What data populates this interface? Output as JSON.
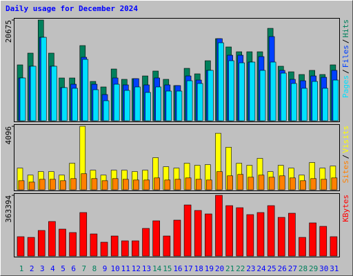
{
  "chart_data": [
    {
      "type": "bar",
      "title": "Daily usage for December 2024",
      "categories": [
        "1",
        "2",
        "3",
        "4",
        "5",
        "6",
        "7",
        "8",
        "9",
        "10",
        "11",
        "12",
        "13",
        "14",
        "15",
        "16",
        "17",
        "18",
        "19",
        "20",
        "21",
        "22",
        "23",
        "24",
        "25",
        "26",
        "27",
        "28",
        "29",
        "30",
        "31"
      ],
      "ylim": [
        0,
        20675
      ],
      "yticks": [
        20675
      ],
      "series": [
        {
          "name": "Pages",
          "color": "#00E0FF",
          "values": [
            8780,
            11190,
            17130,
            11190,
            6800,
            6660,
            12600,
            6370,
            4110,
            7500,
            6230,
            6940,
            5810,
            6940,
            6090,
            6090,
            8210,
            7650,
            10340,
            16000,
            12320,
            11890,
            12040,
            10340,
            12040,
            9770,
            7650,
            6660,
            8070,
            6660,
            8350
          ]
        },
        {
          "name": "Files",
          "color": "#0040FF",
          "values": [
            8780,
            11190,
            17130,
            11190,
            6800,
            7500,
            13030,
            7500,
            5380,
            8780,
            7360,
            8640,
            7360,
            8780,
            7360,
            7220,
            9200,
            8350,
            10340,
            16850,
            13450,
            13450,
            12040,
            13170,
            17280,
            10340,
            8500,
            8210,
            9200,
            8920,
            10340
          ]
        },
        {
          "name": "Hits",
          "color": "#00805C",
          "values": [
            11470,
            13880,
            20675,
            13880,
            8780,
            8780,
            15430,
            8070,
            6940,
            10620,
            8500,
            8640,
            9200,
            10200,
            8500,
            7220,
            10760,
            9630,
            12320,
            16850,
            15150,
            14160,
            14160,
            14160,
            18970,
            11190,
            10050,
            9490,
            10340,
            9490,
            11470
          ]
        }
      ]
    },
    {
      "type": "bar",
      "categories": [
        "1",
        "2",
        "3",
        "4",
        "5",
        "6",
        "7",
        "8",
        "9",
        "10",
        "11",
        "12",
        "13",
        "14",
        "15",
        "16",
        "17",
        "18",
        "19",
        "20",
        "21",
        "22",
        "23",
        "24",
        "25",
        "26",
        "27",
        "28",
        "29",
        "30",
        "31"
      ],
      "ylim": [
        0,
        4096
      ],
      "yticks": [
        4096
      ],
      "series": [
        {
          "name": "Sites",
          "color": "#FF8000",
          "values": [
            585,
            495,
            675,
            675,
            585,
            720,
            1035,
            720,
            585,
            720,
            675,
            630,
            630,
            765,
            630,
            675,
            765,
            675,
            630,
            1170,
            900,
            990,
            810,
            945,
            810,
            900,
            765,
            585,
            720,
            675,
            765
          ]
        },
        {
          "name": "Visits",
          "color": "#FFFF00",
          "values": [
            1395,
            945,
            1170,
            1170,
            945,
            1710,
            4096,
            1260,
            945,
            1260,
            1260,
            1170,
            1260,
            2070,
            1485,
            1395,
            1710,
            1575,
            1620,
            3645,
            2745,
            1710,
            1575,
            2025,
            1170,
            1575,
            1395,
            945,
            1755,
            1395,
            1530
          ]
        }
      ]
    },
    {
      "type": "bar",
      "categories": [
        "1",
        "2",
        "3",
        "4",
        "5",
        "6",
        "7",
        "8",
        "9",
        "10",
        "11",
        "12",
        "13",
        "14",
        "15",
        "16",
        "17",
        "18",
        "19",
        "20",
        "21",
        "22",
        "23",
        "24",
        "25",
        "26",
        "27",
        "28",
        "29",
        "30",
        "31"
      ],
      "category_colors": [
        "#00805C",
        "#0000FF",
        "#0000FF",
        "#0000FF",
        "#0000FF",
        "#0000FF",
        "#00805C",
        "#00805C",
        "#0000FF",
        "#0000FF",
        "#0000FF",
        "#0000FF",
        "#0000FF",
        "#00805C",
        "#00805C",
        "#0000FF",
        "#0000FF",
        "#0000FF",
        "#0000FF",
        "#0000FF",
        "#00805C",
        "#00805C",
        "#0000FF",
        "#0000FF",
        "#0000FF",
        "#0000FF",
        "#0000FF",
        "#00805C",
        "#00805C",
        "#0000FF",
        "#0000FF"
      ],
      "ylim": [
        0,
        363394
      ],
      "yticks": [
        363394
      ],
      "series": [
        {
          "name": "KBytes",
          "color": "#FF0000",
          "values": [
            115610,
            111480,
            152770,
            206450,
            161030,
            140390,
            260130,
            132130,
            82580,
            119740,
            90840,
            90840,
            165160,
            210580,
            119740,
            214710,
            305550,
            272510,
            251870,
            363394,
            301420,
            289030,
            247740,
            260130,
            301420,
            231220,
            256000,
            111480,
            198190,
            177550,
            115610
          ]
        }
      ]
    }
  ],
  "legend_separator": "/"
}
